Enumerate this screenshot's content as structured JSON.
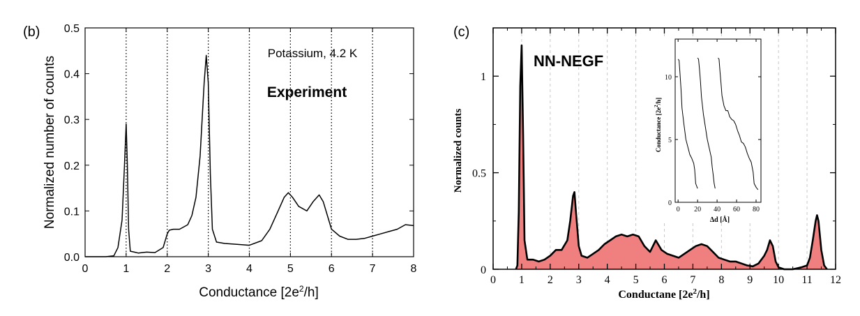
{
  "panels": {
    "b": {
      "panel_label": "(b)",
      "annotation": "Potassium, 4.2 K",
      "heading": "Experiment",
      "x_tick_labels": [
        "0",
        "1",
        "2",
        "3",
        "4",
        "5",
        "6",
        "7",
        "8"
      ],
      "y_tick_labels": [
        "0.0",
        "0.1",
        "0.2",
        "0.3",
        "0.4",
        "0.5"
      ]
    },
    "c": {
      "panel_label": "(c)",
      "heading": "NN-NEGF",
      "x_tick_labels": [
        "0",
        "1",
        "2",
        "3",
        "4",
        "5",
        "6",
        "7",
        "8",
        "9",
        "10",
        "11",
        "12"
      ],
      "y_tick_labels": [
        "0",
        "0.5",
        "1"
      ],
      "inset": {
        "x_tick_labels": [
          "0",
          "20",
          "40",
          "60",
          "80"
        ],
        "y_tick_labels": [
          "0",
          "5",
          "10"
        ]
      }
    }
  },
  "colors": {
    "line": "#000000",
    "fill_c": "#f08080",
    "grid_b": "#000000",
    "grid_c": "#c8c8c8"
  },
  "chart_data": [
    {
      "type": "line",
      "panel": "(b)",
      "title": "",
      "xlabel": "Conductance [2e²/h]",
      "ylabel": "Normalized number of counts",
      "xlim": [
        0,
        8
      ],
      "ylim": [
        0,
        0.5
      ],
      "grid": "vertical dotted lines at integer conductance values",
      "annotations": [
        "Potassium, 4.2 K",
        "Experiment"
      ],
      "series": [
        {
          "x": [
            0.0,
            0.5,
            0.7,
            0.8,
            0.9,
            0.95,
            1.0,
            1.03,
            1.06,
            1.1,
            1.2,
            1.3,
            1.5,
            1.7,
            1.9,
            2.0,
            2.05,
            2.15,
            2.3,
            2.5,
            2.6,
            2.7,
            2.8,
            2.9,
            2.95,
            3.0,
            3.05,
            3.1,
            3.2,
            3.4,
            3.7,
            4.0,
            4.3,
            4.5,
            4.7,
            4.85,
            4.95,
            5.05,
            5.2,
            5.4,
            5.55,
            5.7,
            5.8,
            5.9,
            6.0,
            6.2,
            6.4,
            6.6,
            6.8,
            7.0,
            7.2,
            7.4,
            7.6,
            7.8,
            8.0
          ],
          "y": [
            0.0,
            0.0,
            0.002,
            0.02,
            0.08,
            0.18,
            0.29,
            0.2,
            0.06,
            0.012,
            0.01,
            0.008,
            0.01,
            0.009,
            0.02,
            0.05,
            0.058,
            0.06,
            0.06,
            0.07,
            0.09,
            0.13,
            0.22,
            0.38,
            0.44,
            0.38,
            0.18,
            0.06,
            0.032,
            0.029,
            0.027,
            0.025,
            0.035,
            0.06,
            0.1,
            0.13,
            0.14,
            0.13,
            0.11,
            0.1,
            0.12,
            0.135,
            0.12,
            0.09,
            0.06,
            0.045,
            0.038,
            0.038,
            0.04,
            0.045,
            0.05,
            0.055,
            0.06,
            0.07,
            0.068
          ]
        }
      ]
    },
    {
      "type": "area",
      "panel": "(c)",
      "title": "",
      "xlabel": "Conductane [2e²/h]",
      "ylabel": "Normalized counts",
      "xlim": [
        0,
        12
      ],
      "ylim": [
        0,
        1.25
      ],
      "grid": "vertical dashed gray lines at integer conductance values",
      "annotations": [
        "NN-NEGF"
      ],
      "series": [
        {
          "x": [
            0.8,
            0.85,
            0.9,
            0.95,
            1.0,
            1.05,
            1.1,
            1.2,
            1.4,
            1.6,
            1.8,
            2.0,
            2.2,
            2.4,
            2.6,
            2.7,
            2.8,
            2.85,
            2.9,
            3.0,
            3.1,
            3.3,
            3.5,
            3.7,
            3.9,
            4.1,
            4.3,
            4.5,
            4.7,
            4.9,
            5.1,
            5.3,
            5.5,
            5.7,
            5.9,
            6.1,
            6.3,
            6.5,
            6.7,
            6.9,
            7.1,
            7.3,
            7.5,
            7.7,
            7.9,
            8.1,
            8.3,
            8.5,
            8.7,
            8.9,
            9.1,
            9.3,
            9.5,
            9.6,
            9.7,
            9.8,
            9.9,
            10.0,
            10.2,
            10.5,
            10.8,
            11.0,
            11.1,
            11.2,
            11.3,
            11.35,
            11.4,
            11.5,
            11.6,
            11.7
          ],
          "y": [
            0.0,
            0.02,
            0.3,
            0.95,
            1.16,
            0.7,
            0.15,
            0.05,
            0.05,
            0.04,
            0.05,
            0.07,
            0.1,
            0.1,
            0.15,
            0.25,
            0.38,
            0.4,
            0.3,
            0.12,
            0.07,
            0.06,
            0.08,
            0.1,
            0.13,
            0.15,
            0.17,
            0.18,
            0.17,
            0.18,
            0.17,
            0.12,
            0.09,
            0.15,
            0.1,
            0.08,
            0.07,
            0.06,
            0.08,
            0.1,
            0.12,
            0.13,
            0.12,
            0.09,
            0.06,
            0.05,
            0.04,
            0.04,
            0.03,
            0.02,
            0.015,
            0.03,
            0.07,
            0.1,
            0.15,
            0.12,
            0.04,
            0.01,
            0.0,
            0.0,
            0.01,
            0.02,
            0.06,
            0.15,
            0.25,
            0.28,
            0.25,
            0.1,
            0.02,
            0.0
          ]
        }
      ]
    },
    {
      "type": "line",
      "panel": "(c) inset",
      "title": "",
      "xlabel": "Δd [Å]",
      "ylabel": "Conductance [2e²/h]",
      "xlim": [
        -3,
        85
      ],
      "ylim": [
        0,
        13
      ],
      "grid": "none",
      "series": [
        {
          "x": [
            0,
            1,
            2,
            3,
            4,
            6,
            8,
            10,
            12,
            14,
            16,
            17,
            18,
            20
          ],
          "y": [
            11.4,
            11.3,
            10.2,
            9,
            7.5,
            6.2,
            5,
            4.4,
            3.8,
            3.5,
            3.1,
            2.6,
            1.5,
            1.1
          ]
        },
        {
          "x": [
            20,
            21,
            22,
            23,
            24,
            26,
            28,
            30,
            32,
            34,
            35,
            36,
            37,
            38
          ],
          "y": [
            11.5,
            11.4,
            10.6,
            9.6,
            8.4,
            7,
            6,
            5,
            4.3,
            3.6,
            2.8,
            2.2,
            1.5,
            1.1
          ]
        },
        {
          "x": [
            41,
            42,
            43,
            44,
            45,
            47,
            49,
            51,
            53,
            55,
            57,
            59,
            61,
            63,
            65,
            67,
            69,
            71,
            73,
            75,
            77,
            78,
            80,
            82
          ],
          "y": [
            11.5,
            11.4,
            10.4,
            9.5,
            8.5,
            7.7,
            7.3,
            7.3,
            6.8,
            6.6,
            6.5,
            6.2,
            5.7,
            5.3,
            4.8,
            4.7,
            4.4,
            3.9,
            3.5,
            3.2,
            2.4,
            1.5,
            1.2,
            1.0
          ]
        }
      ]
    }
  ]
}
